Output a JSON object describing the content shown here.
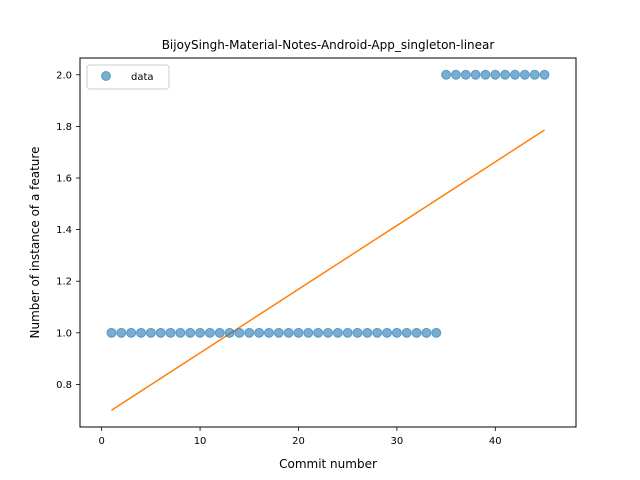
{
  "chart_data": {
    "type": "scatter",
    "title": "BijoySingh-Material-Notes-Android-App_singleton-linear",
    "xlabel": "Commit number",
    "ylabel": "Number of instance of a feature",
    "xlim": [
      -2.2,
      48.2
    ],
    "ylim": [
      0.635,
      2.065
    ],
    "xticks": [
      0,
      10,
      20,
      30,
      40
    ],
    "yticks": [
      0.8,
      1.0,
      1.2,
      1.4,
      1.6,
      1.8,
      2.0
    ],
    "xtick_labels": [
      "0",
      "10",
      "20",
      "30",
      "40"
    ],
    "ytick_labels": [
      "0.8",
      "1.0",
      "1.2",
      "1.4",
      "1.6",
      "1.8",
      "2.0"
    ],
    "grid": false,
    "legend_position": "top-left",
    "series": [
      {
        "name": "data",
        "kind": "scatter",
        "color": "#1f77b4",
        "x": [
          1,
          2,
          3,
          4,
          5,
          6,
          7,
          8,
          9,
          10,
          11,
          12,
          13,
          14,
          15,
          16,
          17,
          18,
          19,
          20,
          21,
          22,
          23,
          24,
          25,
          26,
          27,
          28,
          29,
          30,
          31,
          32,
          33,
          34,
          35,
          36,
          37,
          38,
          39,
          40,
          41,
          42,
          43,
          44,
          45
        ],
        "y": [
          1,
          1,
          1,
          1,
          1,
          1,
          1,
          1,
          1,
          1,
          1,
          1,
          1,
          1,
          1,
          1,
          1,
          1,
          1,
          1,
          1,
          1,
          1,
          1,
          1,
          1,
          1,
          1,
          1,
          1,
          1,
          1,
          1,
          1,
          2,
          2,
          2,
          2,
          2,
          2,
          2,
          2,
          2,
          2,
          2
        ]
      },
      {
        "kind": "line",
        "color": "#ff7f0e",
        "x": [
          1,
          45
        ],
        "y": [
          0.7,
          1.786
        ]
      }
    ]
  }
}
